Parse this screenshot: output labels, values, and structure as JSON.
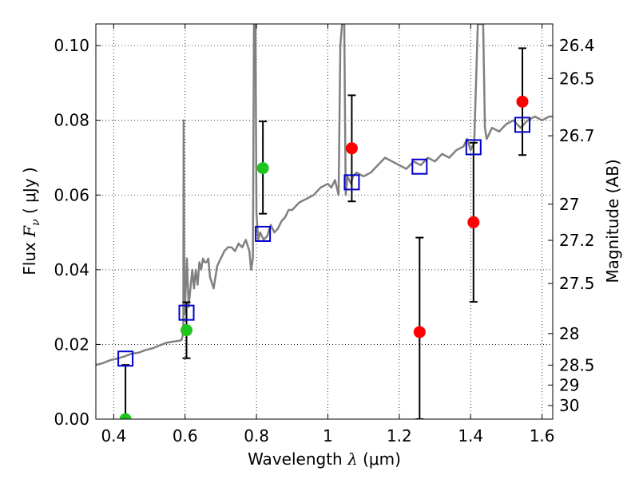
{
  "chart_data": {
    "type": "scatter",
    "title": "",
    "xlabel": "Wavelength",
    "xlabel_symbol": "λ",
    "xlabel_unit": "(μm)",
    "ylabel": "Flux",
    "ylabel_symbol": "F",
    "ylabel_subscript": "ν",
    "ylabel_unit": "( μJy )",
    "y2label": "Magnitude (AB)",
    "xlim": [
      0.35,
      1.63
    ],
    "ylim": [
      0.0,
      0.1058
    ],
    "grid": true,
    "grid_style": "dotted",
    "x_ticks": [
      {
        "value": 0.4,
        "label": "0.4"
      },
      {
        "value": 0.6,
        "label": "0.6"
      },
      {
        "value": 0.8,
        "label": "0.8"
      },
      {
        "value": 1.0,
        "label": "1"
      },
      {
        "value": 1.2,
        "label": "1.2"
      },
      {
        "value": 1.4,
        "label": "1.4"
      },
      {
        "value": 1.6,
        "label": "1.6"
      }
    ],
    "y_ticks": [
      {
        "value": 0.0,
        "label": "0.00"
      },
      {
        "value": 0.02,
        "label": "0.02"
      },
      {
        "value": 0.04,
        "label": "0.04"
      },
      {
        "value": 0.06,
        "label": "0.06"
      },
      {
        "value": 0.08,
        "label": "0.08"
      },
      {
        "value": 0.1,
        "label": "0.10"
      }
    ],
    "y2_ticks": [
      {
        "mag": 26.4,
        "label": "26.4"
      },
      {
        "mag": 26.5,
        "label": "26.5"
      },
      {
        "mag": 26.7,
        "label": "26.7"
      },
      {
        "mag": 27.0,
        "label": "27"
      },
      {
        "mag": 27.2,
        "label": "27.2"
      },
      {
        "mag": 27.5,
        "label": "27.5"
      },
      {
        "mag": 28.0,
        "label": "28"
      },
      {
        "mag": 28.5,
        "label": "28.5"
      },
      {
        "mag": 29.0,
        "label": "29"
      },
      {
        "mag": 30.0,
        "label": "30"
      }
    ],
    "colors": {
      "model": "#808080",
      "green_points": "#1fc41f",
      "red_points": "#ff0000",
      "synthetic": "#0000cc",
      "errorbar": "#000000"
    },
    "model_spectrum": {
      "x": [
        0.35,
        0.37,
        0.39,
        0.41,
        0.43,
        0.45,
        0.47,
        0.49,
        0.51,
        0.53,
        0.55,
        0.57,
        0.585,
        0.59,
        0.595,
        0.596,
        0.598,
        0.6,
        0.605,
        0.61,
        0.615,
        0.62,
        0.625,
        0.63,
        0.635,
        0.64,
        0.645,
        0.65,
        0.655,
        0.66,
        0.665,
        0.67,
        0.68,
        0.69,
        0.7,
        0.71,
        0.72,
        0.73,
        0.74,
        0.75,
        0.76,
        0.77,
        0.78,
        0.785,
        0.79,
        0.793,
        0.795,
        0.797,
        0.8,
        0.805,
        0.81,
        0.815,
        0.82,
        0.83,
        0.84,
        0.85,
        0.86,
        0.87,
        0.88,
        0.89,
        0.9,
        0.92,
        0.94,
        0.96,
        0.98,
        1.0,
        1.01,
        1.02,
        1.03,
        1.035,
        1.04,
        1.043,
        1.046,
        1.05,
        1.055,
        1.06,
        1.065,
        1.07,
        1.08,
        1.1,
        1.12,
        1.14,
        1.16,
        1.18,
        1.2,
        1.22,
        1.24,
        1.26,
        1.28,
        1.3,
        1.32,
        1.34,
        1.36,
        1.38,
        1.39,
        1.4,
        1.41,
        1.42,
        1.43,
        1.435,
        1.44,
        1.445,
        1.45,
        1.46,
        1.48,
        1.5,
        1.52,
        1.54,
        1.56,
        1.58,
        1.6,
        1.62,
        1.63
      ],
      "y": [
        0.0145,
        0.015,
        0.0158,
        0.0162,
        0.0168,
        0.0175,
        0.0178,
        0.0185,
        0.019,
        0.0198,
        0.0205,
        0.0208,
        0.021,
        0.0212,
        0.023,
        0.08,
        0.028,
        0.0305,
        0.043,
        0.03,
        0.035,
        0.04,
        0.035,
        0.04,
        0.036,
        0.042,
        0.04,
        0.043,
        0.042,
        0.042,
        0.043,
        0.038,
        0.035,
        0.041,
        0.043,
        0.045,
        0.046,
        0.046,
        0.045,
        0.047,
        0.046,
        0.048,
        0.045,
        0.04,
        0.043,
        0.1058,
        0.1058,
        0.1058,
        0.055,
        0.048,
        0.05,
        0.049,
        0.048,
        0.049,
        0.052,
        0.05,
        0.051,
        0.053,
        0.054,
        0.056,
        0.056,
        0.058,
        0.059,
        0.06,
        0.062,
        0.063,
        0.062,
        0.064,
        0.06,
        0.1,
        0.1058,
        0.1058,
        0.1058,
        0.06,
        0.065,
        0.064,
        0.063,
        0.065,
        0.066,
        0.065,
        0.066,
        0.068,
        0.07,
        0.069,
        0.068,
        0.067,
        0.069,
        0.068,
        0.07,
        0.069,
        0.071,
        0.07,
        0.072,
        0.073,
        0.075,
        0.072,
        0.074,
        0.1058,
        0.1058,
        0.1058,
        0.078,
        0.075,
        0.076,
        0.078,
        0.077,
        0.079,
        0.08,
        0.078,
        0.08,
        0.081,
        0.08,
        0.081,
        0.081
      ]
    },
    "synthetic_photometry": {
      "x": [
        0.433,
        0.604,
        0.818,
        1.067,
        1.257,
        1.408,
        1.545
      ],
      "y": [
        0.0162,
        0.0285,
        0.0496,
        0.0634,
        0.0676,
        0.0728,
        0.0788
      ]
    },
    "observed_green": {
      "x": [
        0.433,
        0.604,
        0.818
      ],
      "y": [
        0.0,
        0.0238,
        0.0672
      ],
      "err_low": [
        0.0,
        0.0075,
        0.0122
      ],
      "err_high": [
        0.0145,
        0.0075,
        0.0125
      ]
    },
    "observed_red": {
      "x": [
        1.067,
        1.257,
        1.408,
        1.545
      ],
      "y": [
        0.0725,
        0.0233,
        0.0527,
        0.085
      ],
      "err_low": [
        0.0142,
        0.0233,
        0.0213,
        0.0143
      ],
      "err_high": [
        0.0142,
        0.0253,
        0.0213,
        0.0143
      ]
    }
  }
}
